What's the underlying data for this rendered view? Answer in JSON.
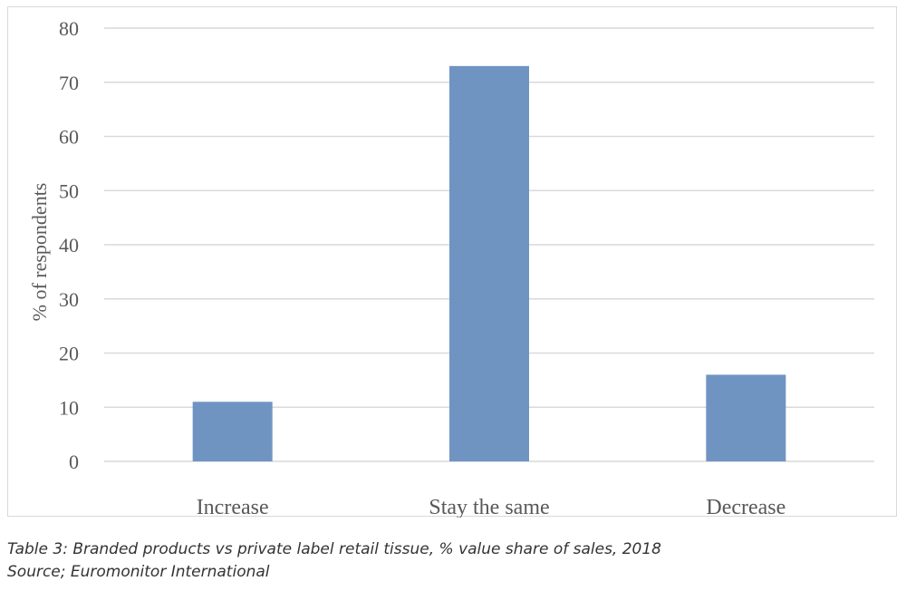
{
  "chart_data": {
    "type": "bar",
    "categories": [
      "Increase",
      "Stay the same",
      "Decrease"
    ],
    "values": [
      11,
      73,
      16
    ],
    "ylabel": "% of respondents",
    "xlabel": "",
    "ylim": [
      0,
      80
    ],
    "yticks": [
      0,
      10,
      20,
      30,
      40,
      50,
      60,
      70,
      80
    ],
    "grid": true,
    "bar_color": "#7094c2",
    "grid_color": "#d9d9d9"
  },
  "caption": {
    "title": "Table 3: Branded products vs private label retail tissue, % value share of sales, 2018",
    "source": "Source; Euromonitor International"
  }
}
